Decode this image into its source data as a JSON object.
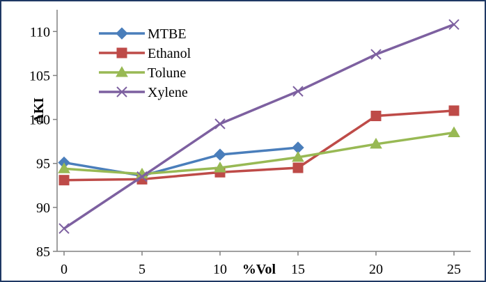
{
  "chart_data": {
    "type": "line",
    "title": "",
    "xlabel": "%Vol",
    "ylabel": "AKI",
    "x": [
      0,
      5,
      10,
      15,
      20,
      25
    ],
    "x_tick_labels": [
      "0",
      "5",
      "10",
      "15",
      "20",
      "25"
    ],
    "ylim": [
      85,
      112
    ],
    "y_ticks": [
      85,
      90,
      95,
      100,
      105,
      110
    ],
    "y_tick_labels": [
      "85",
      "90",
      "95",
      "100",
      "105",
      "110"
    ],
    "grid": false,
    "legend_position": "top-left",
    "series": [
      {
        "name": "MTBE",
        "color": "#4a7ebb",
        "marker": "diamond",
        "x": [
          0,
          5,
          10,
          15
        ],
        "values": [
          95.1,
          93.6,
          96.0,
          96.8
        ]
      },
      {
        "name": "Ethanol",
        "color": "#be4b48",
        "marker": "square",
        "x": [
          0,
          5,
          10,
          15,
          20,
          25
        ],
        "values": [
          93.1,
          93.2,
          94.0,
          94.5,
          100.4,
          101.0
        ]
      },
      {
        "name": "Tolune",
        "color": "#98b954",
        "marker": "triangle",
        "x": [
          0,
          5,
          10,
          15,
          20,
          25
        ],
        "values": [
          94.4,
          93.8,
          94.5,
          95.7,
          97.2,
          98.5
        ]
      },
      {
        "name": "Xylene",
        "color": "#7d60a0",
        "marker": "x",
        "x": [
          0,
          5,
          10,
          15,
          20,
          25
        ],
        "values": [
          87.6,
          93.5,
          99.5,
          103.2,
          107.4,
          110.8
        ]
      }
    ]
  }
}
